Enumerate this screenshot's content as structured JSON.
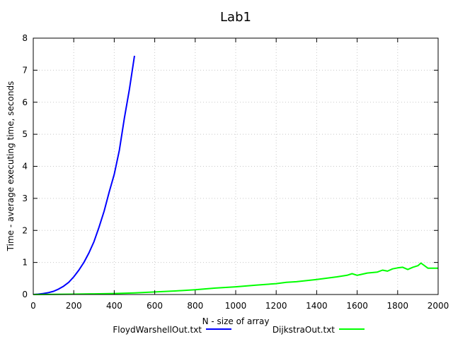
{
  "chart_data": {
    "type": "line",
    "title": "Lab1",
    "xlabel": "N - size of array",
    "ylabel": "Time - average executing time, seconds",
    "xlim": [
      0,
      2000
    ],
    "ylim": [
      0,
      8
    ],
    "xticks": [
      0,
      200,
      400,
      600,
      800,
      1000,
      1200,
      1400,
      1600,
      1800,
      2000
    ],
    "yticks": [
      0,
      1,
      2,
      3,
      4,
      5,
      6,
      7,
      8
    ],
    "grid": true,
    "legend_position": "bottom",
    "series": [
      {
        "name": "FloydWarshellOut.txt",
        "color": "#0000ff",
        "x": [
          0,
          25,
          50,
          75,
          100,
          125,
          150,
          175,
          200,
          225,
          250,
          275,
          300,
          325,
          350,
          375,
          400,
          425,
          450,
          475,
          500
        ],
        "y": [
          0,
          0.01,
          0.03,
          0.06,
          0.1,
          0.17,
          0.26,
          0.38,
          0.55,
          0.76,
          1.0,
          1.3,
          1.65,
          2.1,
          2.6,
          3.2,
          3.75,
          4.5,
          5.5,
          6.4,
          7.45
        ]
      },
      {
        "name": "DijkstraOut.txt",
        "color": "#00ff00",
        "x": [
          0,
          100,
          200,
          300,
          400,
          500,
          600,
          700,
          800,
          900,
          1000,
          1100,
          1200,
          1250,
          1300,
          1400,
          1500,
          1550,
          1575,
          1600,
          1650,
          1700,
          1725,
          1750,
          1775,
          1800,
          1825,
          1850,
          1875,
          1900,
          1915,
          1950,
          2000
        ],
        "y": [
          0,
          0.005,
          0.01,
          0.02,
          0.03,
          0.05,
          0.08,
          0.11,
          0.15,
          0.2,
          0.24,
          0.29,
          0.34,
          0.38,
          0.4,
          0.47,
          0.55,
          0.6,
          0.65,
          0.6,
          0.67,
          0.7,
          0.76,
          0.73,
          0.8,
          0.83,
          0.85,
          0.78,
          0.85,
          0.9,
          0.98,
          0.82,
          0.82
        ]
      }
    ]
  }
}
